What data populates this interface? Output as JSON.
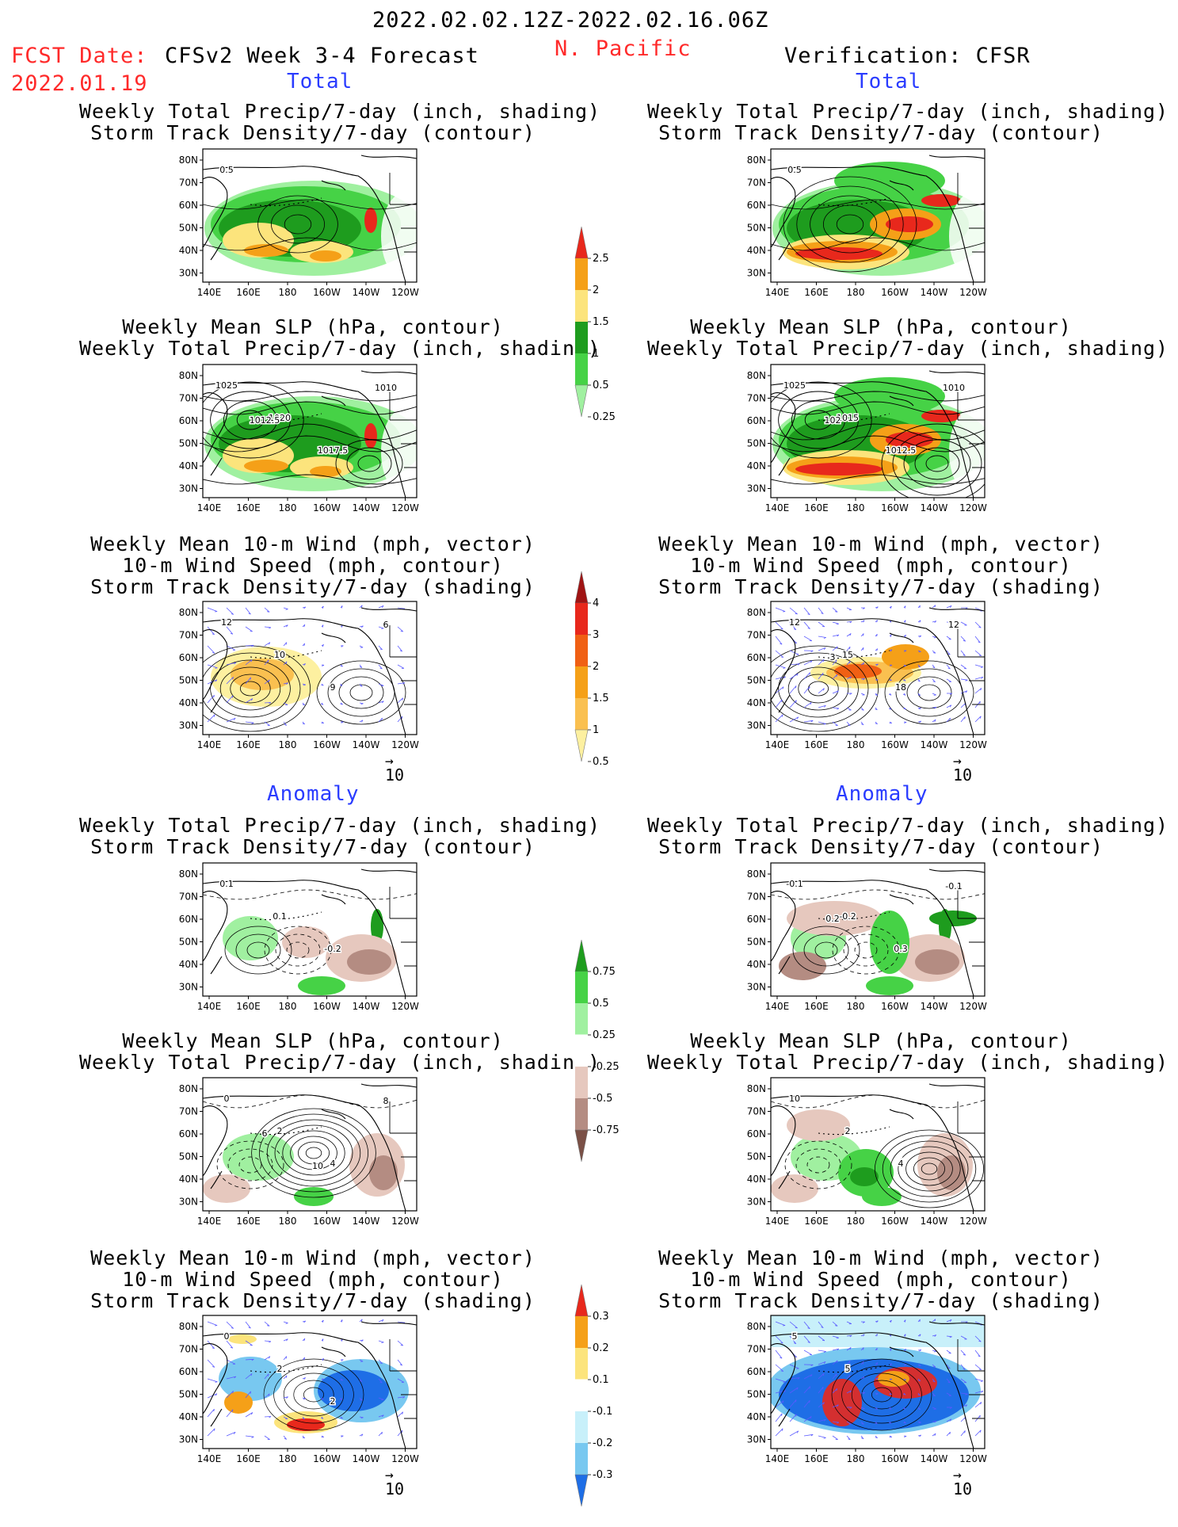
{
  "header": {
    "date_range": "2022.02.02.12Z-2022.02.16.06Z",
    "region": "N. Pacific",
    "fcst_label": "FCST Date:",
    "fcst_date": "2022.01.19",
    "forecast_title": "CFSv2 Week 3-4 Forecast",
    "verification_title": "Verification: CFSR"
  },
  "sections": {
    "total": "Total",
    "anomaly": "Anomaly"
  },
  "panel_titles": {
    "precip_std": [
      "Weekly Total Precip/7-day (inch, shading)",
      "Storm Track Density/7-day (contour)"
    ],
    "slp_precip": [
      "Weekly Mean SLP (hPa, contour)",
      "Weekly Total Precip/7-day (inch, shading)"
    ],
    "wind_std": [
      "Weekly Mean 10-m Wind (mph, vector)",
      "10-m Wind Speed (mph, contour)",
      "Storm Track Density/7-day (shading)"
    ]
  },
  "axes": {
    "lat_ticks": [
      "80N",
      "70N",
      "60N",
      "50N",
      "40N",
      "30N"
    ],
    "lon_ticks": [
      "140E",
      "160E",
      "180",
      "160W",
      "140W",
      "120W"
    ]
  },
  "vector_ref": "10",
  "colorbars": [
    {
      "id": "precip_total",
      "labels": [
        "2.5",
        "2",
        "1.5",
        "1",
        "0.5",
        "0.25"
      ],
      "colors": [
        "#e8281c",
        "#f5a018",
        "#fce47c",
        "#1e9c1e",
        "#46d246",
        "#a0f0a0"
      ]
    },
    {
      "id": "std_total",
      "labels": [
        "4",
        "3",
        "2",
        "1.5",
        "1",
        "0.5"
      ],
      "colors": [
        "#a01414",
        "#e8281c",
        "#f06014",
        "#f5a018",
        "#fac050",
        "#fdf0a0"
      ]
    },
    {
      "id": "precip_anom",
      "labels": [
        "0.75",
        "0.5",
        "0.25",
        "-0.25",
        "-0.5",
        "-0.75"
      ],
      "colors": [
        "#1e9c1e",
        "#46d246",
        "#a0f0a0",
        "#ffffff",
        "#e6c8be",
        "#b48c82",
        "#7a5046"
      ]
    },
    {
      "id": "std_anom",
      "labels": [
        "0.3",
        "0.2",
        "0.1",
        "-0.1",
        "-0.2",
        "-0.3"
      ],
      "colors": [
        "#e8281c",
        "#f5a018",
        "#fce47c",
        "#ffffff",
        "#c8f0fa",
        "#78c8f0",
        "#1e6ee6"
      ]
    }
  ],
  "contour_labels": {
    "ftot_precip": [
      "0.5"
    ],
    "vtot_precip": [
      "0.5"
    ],
    "ftot_slp": [
      "1025",
      "1020",
      "1017.5",
      "1010",
      "1012.5"
    ],
    "vtot_slp": [
      "1025",
      "1015",
      "1012.5",
      "1010",
      "102"
    ],
    "ftot_wind": [
      "12",
      "10",
      "9",
      "6"
    ],
    "vtot_wind": [
      "12",
      "15",
      "18",
      "12",
      "3"
    ],
    "fan_precip": [
      "0.1",
      "0.1",
      "-0.2"
    ],
    "van_precip": [
      "-0.1",
      "-0.2",
      "0.3",
      "-0.1",
      "0.2"
    ],
    "fan_slp": [
      "0",
      "2",
      "4",
      "8",
      "6",
      "10"
    ],
    "van_slp": [
      "10",
      "2",
      "4"
    ],
    "fan_wind": [
      "0",
      "2",
      "2"
    ],
    "van_wind": [
      "5",
      "5"
    ]
  }
}
